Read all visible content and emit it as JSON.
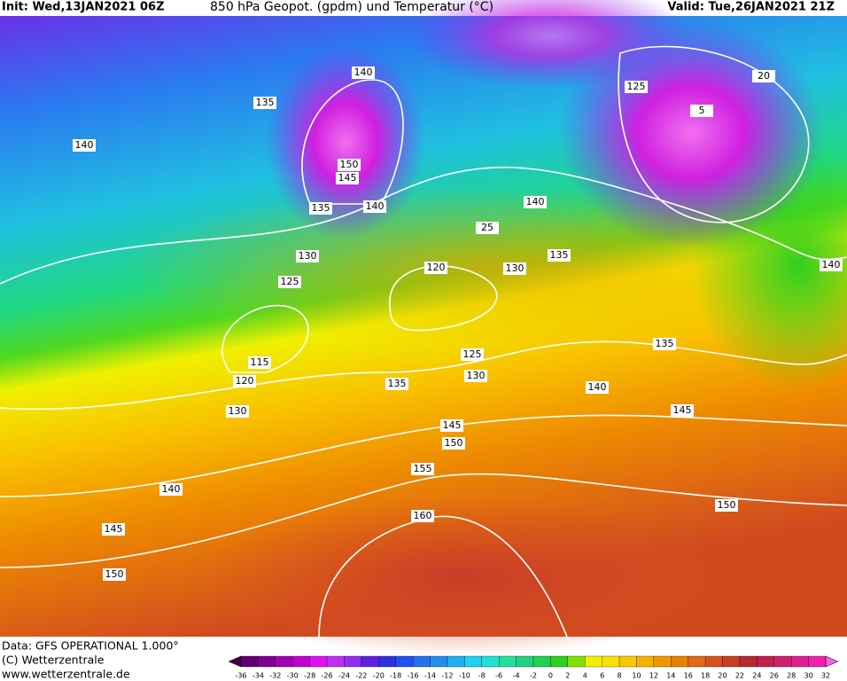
{
  "header": {
    "init": "Init: Wed,13JAN2021 06Z",
    "title": "850 hPa Geopot. (gpdm) und Temperatur (°C)",
    "valid": "Valid: Tue,26JAN2021 21Z"
  },
  "footer": {
    "data_source": "Data: GFS OPERATIONAL 1.000°",
    "copyright": "(C) Wetterzentrale",
    "url": "www.wetterzentrale.de"
  },
  "colorbar": {
    "labels": [
      -36,
      -34,
      -32,
      -30,
      -28,
      -26,
      -24,
      -22,
      -20,
      -18,
      -16,
      -14,
      -12,
      -10,
      -8,
      -6,
      -4,
      -2,
      0,
      2,
      4,
      6,
      8,
      10,
      12,
      14,
      16,
      18,
      20,
      22,
      24,
      26,
      28,
      30,
      32
    ],
    "colors": [
      "#400040",
      "#600070",
      "#800090",
      "#a000b0",
      "#c000d0",
      "#e010f0",
      "#c030f0",
      "#9030f0",
      "#6020e0",
      "#3030e0",
      "#2050f0",
      "#2070f0",
      "#2090f0",
      "#20b0f0",
      "#20d0f0",
      "#20e0d0",
      "#20e0a0",
      "#20d080",
      "#20d050",
      "#30d020",
      "#80e000",
      "#f0f000",
      "#f8e000",
      "#f8c800",
      "#f8b000",
      "#f09800",
      "#e88000",
      "#e06818",
      "#d85020",
      "#c83c28",
      "#b82830",
      "#c02050",
      "#d02070",
      "#e02090",
      "#f020b0",
      "#f060e0"
    ]
  },
  "contour_labels": [
    140,
    135,
    140,
    150,
    145,
    135,
    140,
    130,
    125,
    120,
    25,
    130,
    135,
    140,
    125,
    5,
    20,
    140,
    115,
    120,
    130,
    135,
    125,
    130,
    140,
    135,
    145,
    145,
    150,
    155,
    160,
    140,
    145,
    150,
    150
  ]
}
